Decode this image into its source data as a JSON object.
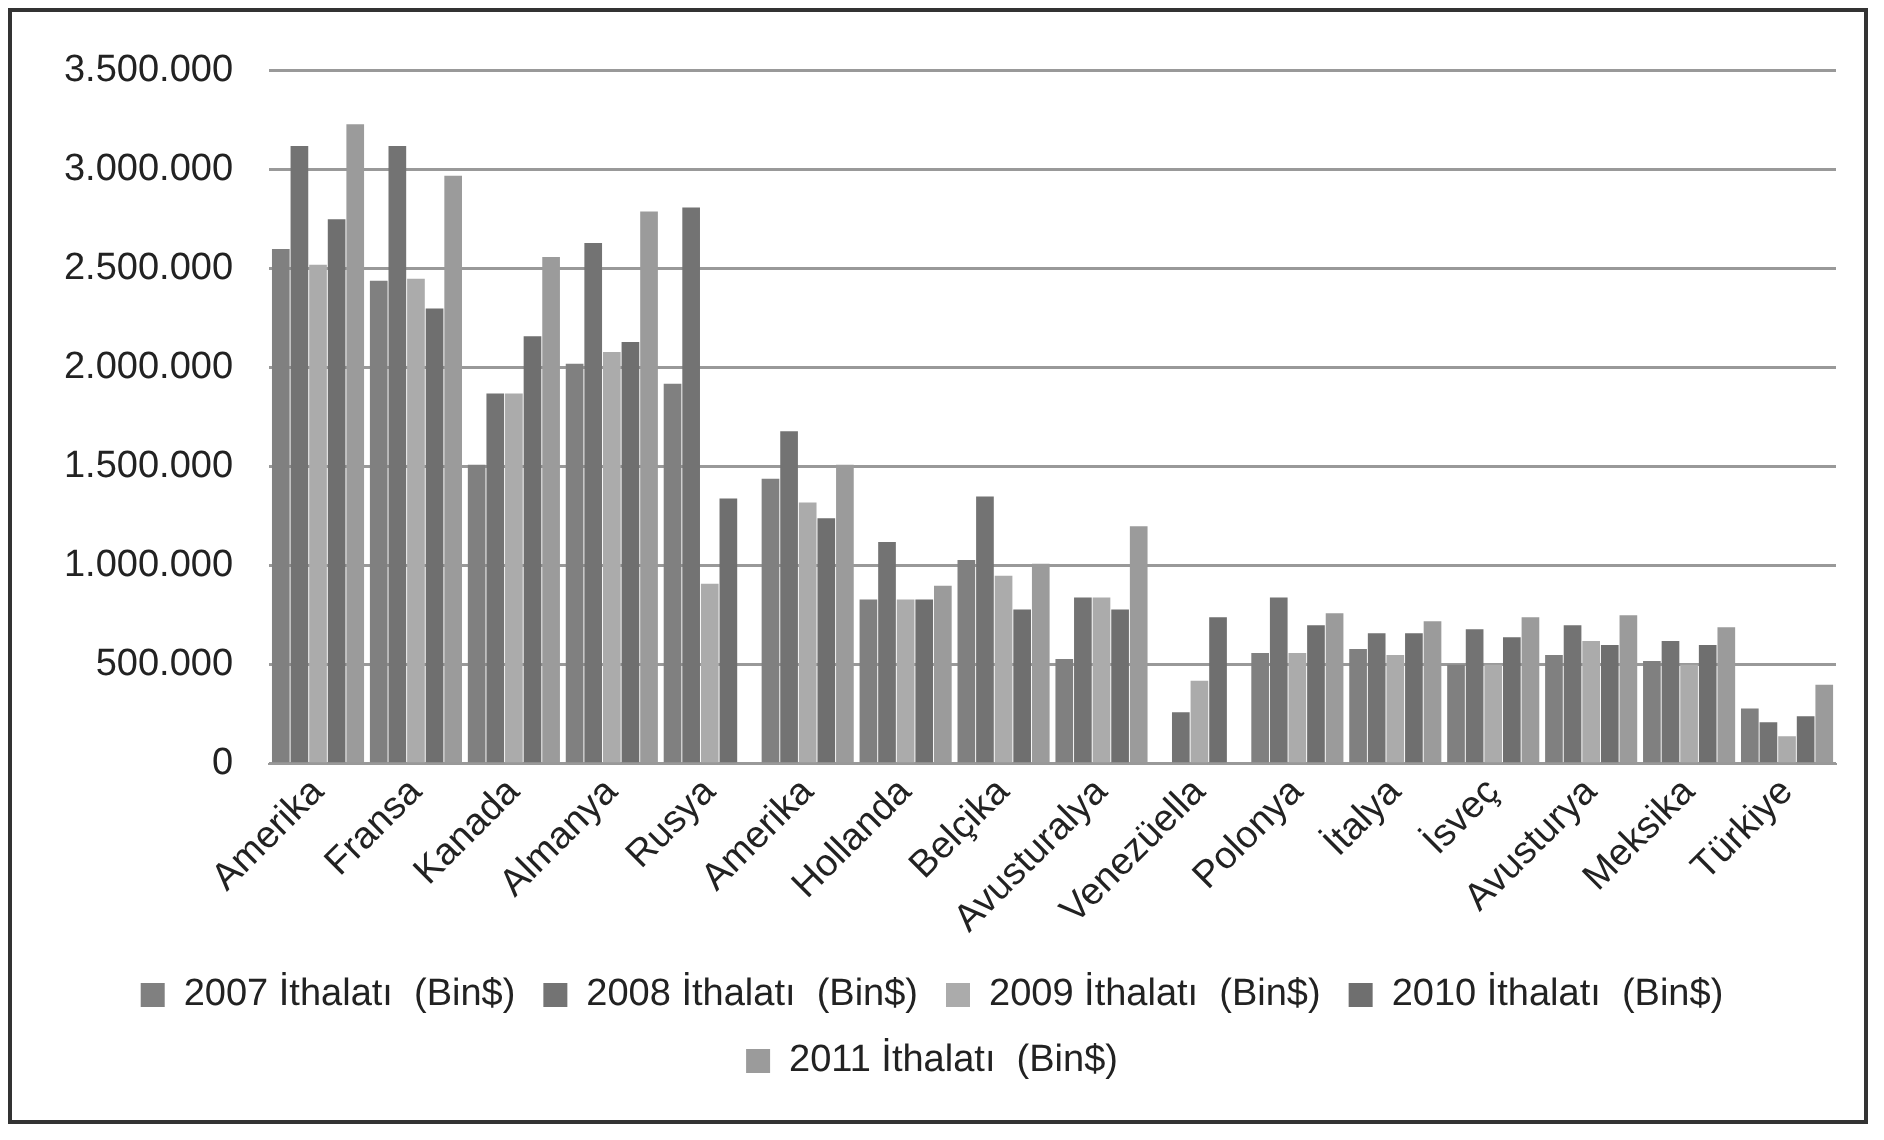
{
  "chart_data": {
    "type": "bar",
    "categories": [
      "Amerika",
      "Fransa",
      "Kanada",
      "Almanya",
      "Rusya",
      "Amerika",
      "Hollanda",
      "Belçika",
      "Avusturalya",
      "Venezüella",
      "Polonya",
      "İtalya",
      "İsveç",
      "Avusturya",
      "Meksika",
      "Türkiye"
    ],
    "series": [
      {
        "name": "2007 İthalatı  (Bin$)",
        "color": "#808080",
        "values": [
          2600000,
          2440000,
          1510000,
          2020000,
          1920000,
          1440000,
          830000,
          1030000,
          530000,
          null,
          560000,
          580000,
          500000,
          550000,
          520000,
          280000
        ]
      },
      {
        "name": "2008 İthalatı  (Bin$)",
        "color": "#737373",
        "values": [
          3120000,
          3120000,
          1870000,
          2630000,
          2810000,
          1680000,
          1120000,
          1350000,
          840000,
          260000,
          840000,
          660000,
          680000,
          700000,
          620000,
          210000
        ]
      },
      {
        "name": "2009 İthalatı  (Bin$)",
        "color": "#ababab",
        "values": [
          2520000,
          2450000,
          1870000,
          2080000,
          910000,
          1320000,
          830000,
          950000,
          840000,
          420000,
          560000,
          550000,
          500000,
          620000,
          500000,
          140000
        ]
      },
      {
        "name": "2010 İthalatı  (Bin$)",
        "color": "#6f6f6f",
        "values": [
          2750000,
          2300000,
          2160000,
          2130000,
          1340000,
          1240000,
          830000,
          780000,
          780000,
          740000,
          700000,
          660000,
          640000,
          600000,
          600000,
          240000
        ]
      },
      {
        "name": "2011 İthalatı  (Bin$)",
        "color": "#9b9b9b",
        "values": [
          3230000,
          2970000,
          2560000,
          2790000,
          null,
          1510000,
          900000,
          1010000,
          1200000,
          null,
          760000,
          720000,
          740000,
          750000,
          690000,
          400000
        ]
      }
    ],
    "ylim": [
      0,
      3500000
    ],
    "yticks": [
      {
        "value": 0,
        "label": "0"
      },
      {
        "value": 500000,
        "label": "500.000"
      },
      {
        "value": 1000000,
        "label": "1.000.000"
      },
      {
        "value": 1500000,
        "label": "1.500.000"
      },
      {
        "value": 2000000,
        "label": "2.000.000"
      },
      {
        "value": 2500000,
        "label": "2.500.000"
      },
      {
        "value": 3000000,
        "label": "3.000.000"
      },
      {
        "value": 3500000,
        "label": "3.500.000"
      }
    ],
    "grid": "y",
    "legend": "bottom"
  }
}
